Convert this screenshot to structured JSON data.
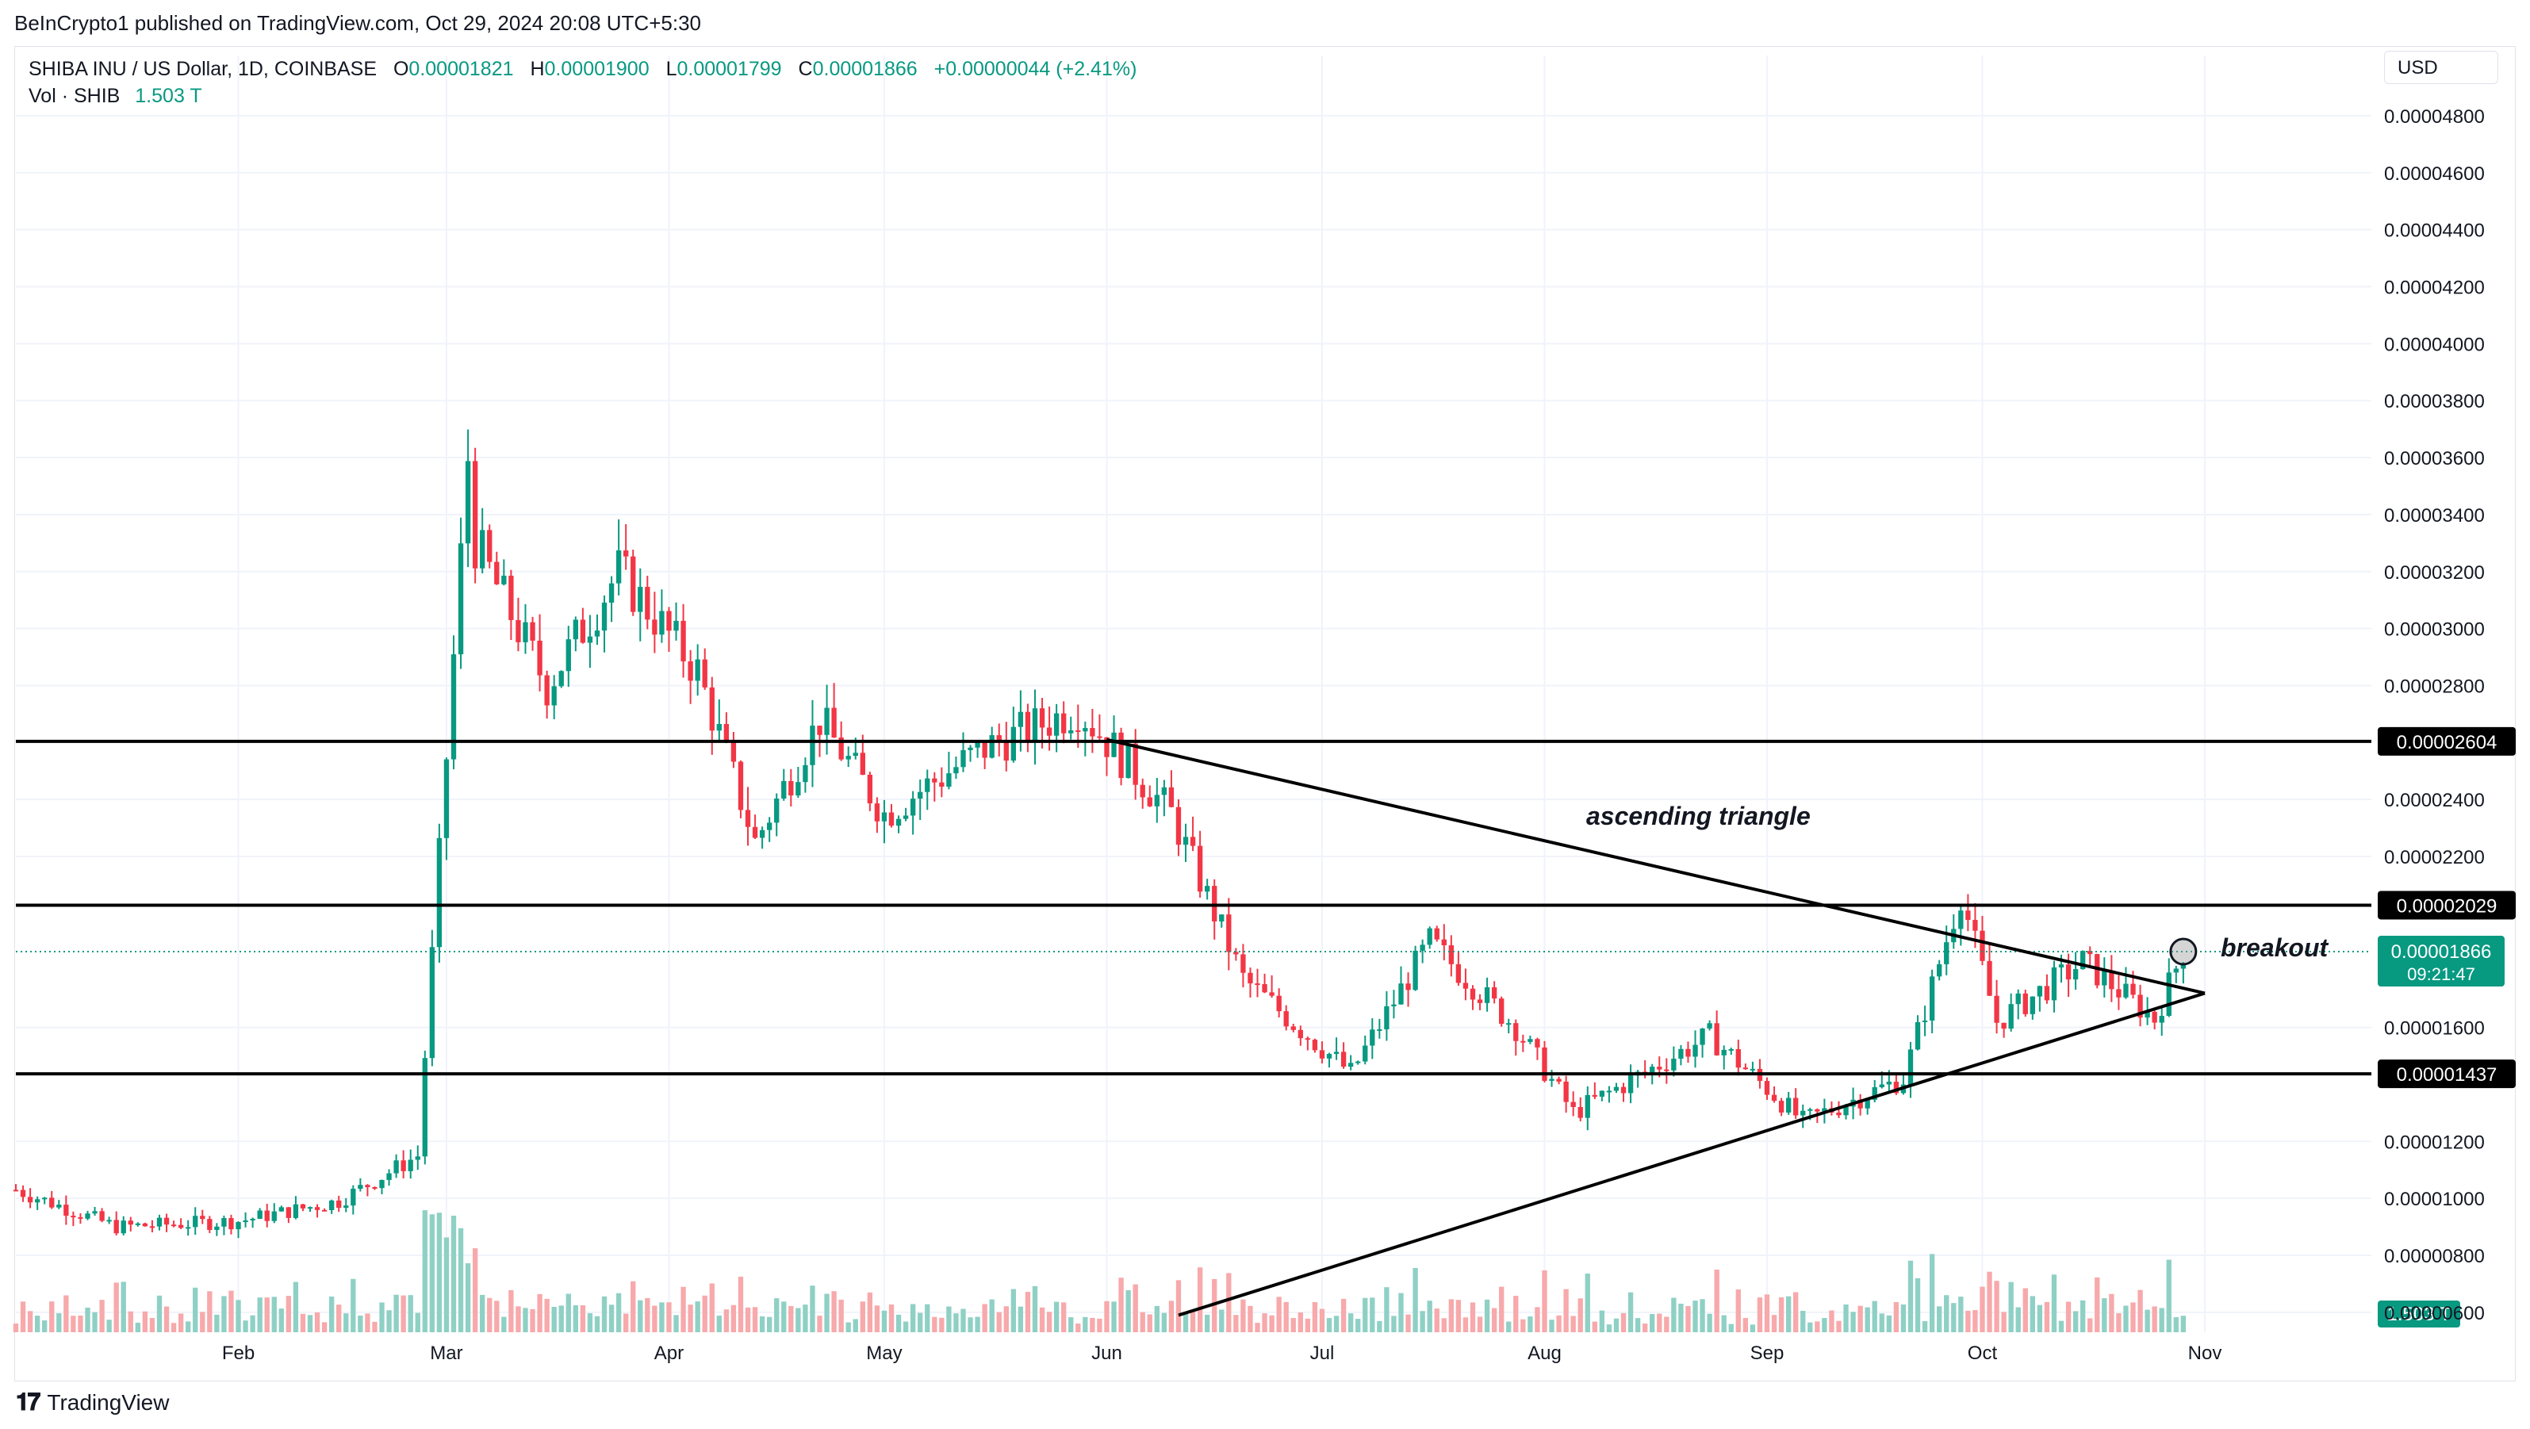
{
  "header": {
    "published": "BeInCrypto1 published on TradingView.com, Oct 29, 2024 20:08 UTC+5:30"
  },
  "legend": {
    "symbol": "SHIBA INU / US Dollar, 1D, COINBASE",
    "o_label": "O",
    "o": "0.00001821",
    "h_label": "H",
    "h": "0.00001900",
    "l_label": "L",
    "l": "0.00001799",
    "c_label": "C",
    "c": "0.00001866",
    "change": "+0.00000044 (+2.41%)",
    "vol_label": "Vol · SHIB",
    "vol": "1.503 T"
  },
  "currency": "USD",
  "footer": {
    "brand": "TradingView"
  },
  "colors": {
    "up": "#089981",
    "down": "#f23645",
    "up_vol": "#8fd0c5",
    "down_vol": "#f7a9ab",
    "line": "#000000"
  },
  "chart_data": {
    "type": "candlestick",
    "symbol": "SHIBA INU / US Dollar",
    "interval": "1D",
    "exchange": "COINBASE",
    "ylim": [
      5e-06,
      4.9e-06
    ],
    "y_ticks": [
      "0.00000600",
      "0.00000800",
      "0.00001000",
      "0.00001200",
      "0.00001600",
      "0.00002200",
      "0.00002400",
      "0.00002800",
      "0.00003000",
      "0.00003200",
      "0.00003400",
      "0.00003600",
      "0.00003800",
      "0.00004000",
      "0.00004200",
      "0.00004400",
      "0.00004600",
      "0.00004800"
    ],
    "x_ticks": [
      "Feb",
      "Mar",
      "Apr",
      "May",
      "Jun",
      "Jul",
      "Aug",
      "Sep",
      "Oct",
      "Nov"
    ],
    "price_markers": [
      {
        "label": "0.00002604",
        "value": 2.604e-05
      },
      {
        "label": "0.00002029",
        "value": 2.029e-05
      },
      {
        "label": "0.00001437",
        "value": 1.437e-05
      }
    ],
    "last_price": {
      "label": "0.00001866",
      "value": 1.866e-05,
      "countdown": "09:21:47"
    },
    "volume_marker": {
      "label": "1.503 T"
    },
    "annotations": [
      {
        "text": "ascending triangle"
      },
      {
        "text": "breakout"
      }
    ],
    "trendlines": [
      {
        "from": [
          "2024-06-01",
          2.61e-05
        ],
        "to": [
          "2024-11-01",
          1.72e-05
        ]
      },
      {
        "from": [
          "2024-06-11",
          5.9e-06
        ],
        "to": [
          "2024-11-01",
          1.72e-05
        ]
      }
    ],
    "series": [
      {
        "x": "2024-01-01",
        "close": 1.03e-05
      },
      {
        "x": "2024-01-15",
        "close": 9e-06
      },
      {
        "x": "2024-02-01",
        "close": 9.2e-06
      },
      {
        "x": "2024-02-15",
        "close": 9.9e-06
      },
      {
        "x": "2024-02-26",
        "close": 1.15e-05
      },
      {
        "x": "2024-03-04",
        "close": 3.6e-05
      },
      {
        "x": "2024-03-05",
        "close": 3.3e-05
      },
      {
        "x": "2024-03-15",
        "close": 2.8e-05
      },
      {
        "x": "2024-03-25",
        "close": 3.2e-05
      },
      {
        "x": "2024-04-05",
        "close": 2.85e-05
      },
      {
        "x": "2024-04-13",
        "close": 2.25e-05
      },
      {
        "x": "2024-04-22",
        "close": 2.68e-05
      },
      {
        "x": "2024-05-01",
        "close": 2.35e-05
      },
      {
        "x": "2024-05-15",
        "close": 2.58e-05
      },
      {
        "x": "2024-05-28",
        "close": 2.72e-05
      },
      {
        "x": "2024-06-10",
        "close": 2.35e-05
      },
      {
        "x": "2024-06-20",
        "close": 1.77e-05
      },
      {
        "x": "2024-07-05",
        "close": 1.44e-05
      },
      {
        "x": "2024-07-16",
        "close": 1.9e-05
      },
      {
        "x": "2024-07-28",
        "close": 1.6e-05
      },
      {
        "x": "2024-08-05",
        "close": 1.3e-05
      },
      {
        "x": "2024-08-24",
        "close": 1.57e-05
      },
      {
        "x": "2024-09-06",
        "close": 1.27e-05
      },
      {
        "x": "2024-09-20",
        "close": 1.42e-05
      },
      {
        "x": "2024-09-28",
        "close": 2.07e-05
      },
      {
        "x": "2024-10-03",
        "close": 1.62e-05
      },
      {
        "x": "2024-10-15",
        "close": 1.83e-05
      },
      {
        "x": "2024-10-25",
        "close": 1.63e-05
      },
      {
        "x": "2024-10-29",
        "close": 1.87e-05
      }
    ]
  }
}
